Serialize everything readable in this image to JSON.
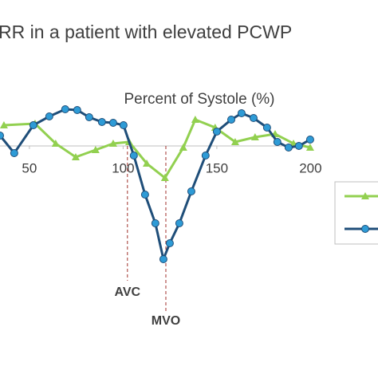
{
  "chart_data": {
    "type": "line",
    "title": "RR in a patient with elevated PCWP",
    "x_label": "Percent of Systole (%)",
    "xlim": [
      34.3,
      236
    ],
    "xticks": [
      50,
      100,
      150,
      200
    ],
    "ylim": [
      -150,
      60
    ],
    "annotations": [
      {
        "text": "AVC",
        "x": 102.3
      },
      {
        "text": "MVO",
        "x": 122.8
      }
    ],
    "series": [
      {
        "color": "#92d050",
        "marker": "triangle",
        "x": [
          36.4,
          53,
          64,
          74.7,
          85.3,
          94.7,
          103.2,
          112.6,
          122.3,
          132.1,
          138.5,
          149.1,
          159.8,
          170.4,
          181.1,
          190.9,
          199.8
        ],
        "values": [
          26,
          28,
          3,
          -14,
          -5,
          3,
          5,
          -22,
          -40,
          -2,
          33,
          23,
          5,
          11,
          15,
          3,
          -2
        ]
      },
      {
        "color": "#1f4e79",
        "marker": "circle",
        "x": [
          34.3,
          41.9,
          52.1,
          60.6,
          69.1,
          75.5,
          81.9,
          88.7,
          94.7,
          100.2,
          105.7,
          111.7,
          117.2,
          121.5,
          124.9,
          130,
          136.4,
          144,
          150,
          157.7,
          163.2,
          169.6,
          176.8,
          182.3,
          188.3,
          193.8,
          199.8
        ],
        "values": [
          13,
          -9,
          26,
          37,
          46,
          45,
          36,
          30,
          29,
          26,
          -12,
          -61,
          -97,
          -142,
          -122,
          -97,
          -57,
          -12,
          18,
          33,
          41,
          35,
          23,
          5,
          -2,
          0,
          8
        ]
      }
    ]
  }
}
